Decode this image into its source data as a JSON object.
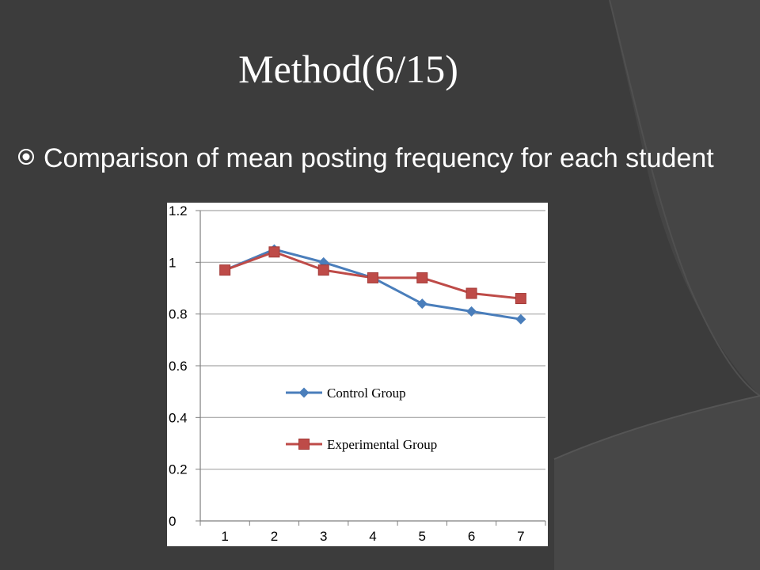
{
  "slide": {
    "title": "Method(6/15)",
    "bullet_text": "Comparison of mean posting frequency for each student",
    "bullet_icon": "circled-dot-icon",
    "background_color": "#3c3c3c"
  },
  "chart_data": {
    "type": "line",
    "title": "",
    "xlabel": "",
    "ylabel": "",
    "x": [
      1,
      2,
      3,
      4,
      5,
      6,
      7
    ],
    "x_tick_labels": [
      "1",
      "2",
      "3",
      "4",
      "5",
      "6",
      "7"
    ],
    "ylim": [
      0,
      1.2
    ],
    "y_ticks": [
      0,
      0.2,
      0.4,
      0.6,
      0.8,
      1,
      1.2
    ],
    "y_tick_labels": [
      "0",
      "0.2",
      "0.4",
      "0.6",
      "0.8",
      "1",
      "1.2"
    ],
    "grid": true,
    "legend_position": "center",
    "series": [
      {
        "name": "Control Group",
        "values": [
          0.97,
          1.05,
          1.0,
          0.94,
          0.84,
          0.81,
          0.78
        ],
        "color": "#4a7ebb",
        "marker": "diamond"
      },
      {
        "name": "Experimental Group",
        "values": [
          0.97,
          1.04,
          0.97,
          0.94,
          0.94,
          0.88,
          0.86
        ],
        "color": "#be4b48",
        "marker": "square"
      }
    ]
  }
}
